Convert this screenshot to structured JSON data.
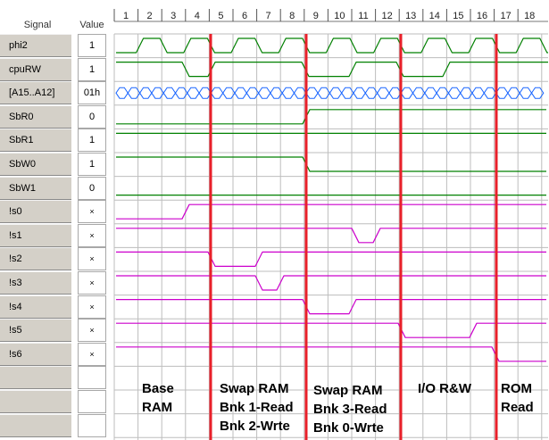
{
  "header": {
    "signal_label": "Signal",
    "value_label": "Value",
    "ticks": [
      "1",
      "2",
      "3",
      "4",
      "5",
      "6",
      "7",
      "8",
      "9",
      "10",
      "11",
      "12",
      "13",
      "14",
      "15",
      "16",
      "17",
      "18"
    ]
  },
  "signals": [
    {
      "name": "phi2",
      "value": "1"
    },
    {
      "name": "cpuRW",
      "value": "1"
    },
    {
      "name": "[A15..A12]",
      "value": "01h"
    },
    {
      "name": "SbR0",
      "value": "0"
    },
    {
      "name": "SbR1",
      "value": "1"
    },
    {
      "name": "SbW0",
      "value": "1"
    },
    {
      "name": "SbW1",
      "value": "0"
    },
    {
      "name": "!s0",
      "value": "×"
    },
    {
      "name": "!s1",
      "value": "×"
    },
    {
      "name": "!s2",
      "value": "×"
    },
    {
      "name": "!s3",
      "value": "×"
    },
    {
      "name": "!s4",
      "value": "×"
    },
    {
      "name": "!s5",
      "value": "×"
    },
    {
      "name": "!s6",
      "value": "×"
    }
  ],
  "annotations": [
    {
      "lines": [
        "Base",
        "RAM"
      ]
    },
    {
      "lines": [
        "Swap RAM",
        "Bnk 1-Read",
        "Bnk 2-Wrte"
      ]
    },
    {
      "lines": [
        "Swap RAM",
        "Bnk 3-Read",
        "Bnk 0-Wrte"
      ]
    },
    {
      "lines": [
        "I/O R&W"
      ]
    },
    {
      "lines": [
        "ROM",
        "Read"
      ]
    }
  ],
  "colors": {
    "control_trace": "#008000",
    "select_trace": "#cc00cc",
    "bus_trace": "#1a66ff",
    "marker": "#e8202a",
    "grid": "#bdbdbd",
    "label_panel": "#d4d0c8"
  }
}
